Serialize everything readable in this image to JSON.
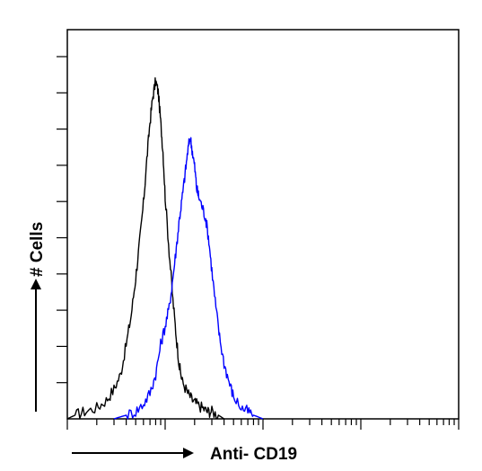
{
  "chart_data": {
    "type": "line",
    "title": "",
    "xlabel": "Anti- CD19",
    "ylabel": "# Cells",
    "x_scale": "log",
    "xlim": [
      1,
      10000
    ],
    "ylim": [
      0,
      100
    ],
    "grid": false,
    "legend": "none",
    "series": [
      {
        "color": "#000000",
        "x": [
          1,
          1.2,
          1.5,
          2,
          2.5,
          3,
          3.5,
          4,
          4.5,
          5,
          5.5,
          6,
          6.5,
          7,
          7.5,
          8,
          8.5,
          9,
          9.5,
          10,
          11,
          12,
          13,
          14,
          15,
          17,
          19,
          21,
          24,
          27,
          30,
          35,
          40
        ],
        "y": [
          0,
          1,
          2,
          3,
          5,
          8,
          12,
          20,
          28,
          38,
          48,
          58,
          70,
          80,
          87,
          91,
          88,
          80,
          72,
          60,
          45,
          32,
          22,
          14,
          10,
          7,
          5,
          4,
          3,
          2,
          2,
          1,
          0
        ]
      },
      {
        "color": "#0000ff",
        "x": [
          3,
          4,
          5,
          6,
          7,
          8,
          9,
          10,
          11,
          12,
          13,
          14,
          15,
          16,
          17,
          18,
          19,
          20,
          21,
          22,
          24,
          26,
          28,
          30,
          33,
          36,
          40,
          45,
          50,
          60,
          70,
          80,
          100
        ],
        "y": [
          0,
          1,
          2,
          4,
          7,
          12,
          20,
          25,
          30,
          38,
          46,
          54,
          60,
          66,
          72,
          76,
          72,
          68,
          62,
          60,
          57,
          54,
          48,
          40,
          30,
          22,
          15,
          10,
          6,
          3,
          2,
          1,
          0
        ]
      }
    ]
  }
}
